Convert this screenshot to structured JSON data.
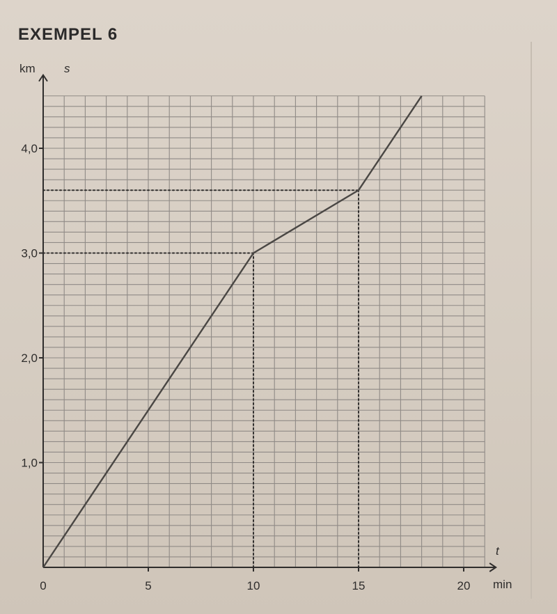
{
  "page": {
    "heading": "EXEMPEL 6"
  },
  "chart_data": {
    "type": "line",
    "title": "",
    "xlabel": "t",
    "x_unit": "min",
    "ylabel": "s",
    "y_unit": "km",
    "xlim": [
      0,
      21
    ],
    "ylim": [
      0,
      4.5
    ],
    "x_ticks": [
      0,
      5,
      10,
      15,
      20
    ],
    "x_tick_labels": [
      "0",
      "5",
      "10",
      "15",
      "20"
    ],
    "y_ticks": [
      1.0,
      2.0,
      3.0,
      4.0
    ],
    "y_tick_labels": [
      "1,0",
      "2,0",
      "3,0",
      "4,0"
    ],
    "grid": true,
    "series": [
      {
        "x": [
          0,
          10,
          15,
          18
        ],
        "y": [
          0,
          3.0,
          3.6,
          4.5
        ]
      }
    ],
    "reference_lines": [
      {
        "from": [
          0,
          3.0
        ],
        "to": [
          10,
          3.0
        ]
      },
      {
        "from": [
          10,
          0
        ],
        "to": [
          10,
          3.0
        ]
      },
      {
        "from": [
          0,
          3.6
        ],
        "to": [
          15,
          3.6
        ]
      },
      {
        "from": [
          15,
          0
        ],
        "to": [
          15,
          3.6
        ]
      }
    ],
    "colors": {
      "line": "#4a4744",
      "grid": "#8f8a86",
      "axis": "#2f2d2c",
      "text": "#2f2d2c"
    }
  }
}
